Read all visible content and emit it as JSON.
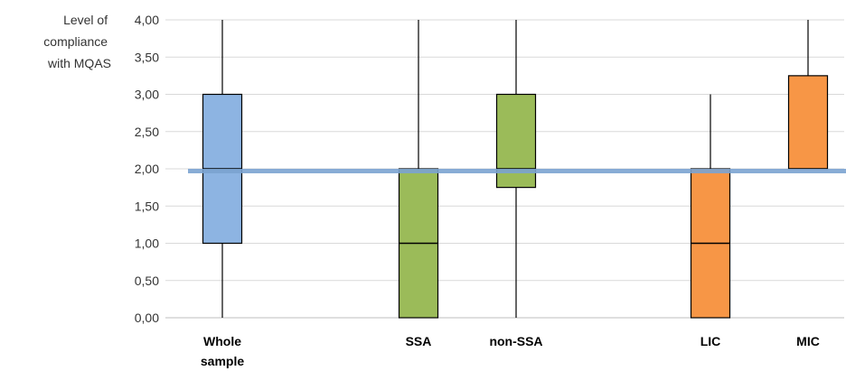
{
  "chart_data": {
    "type": "boxplot",
    "ylabel_lines": [
      "Level of",
      "compliance",
      "with MQAS"
    ],
    "ylim": [
      0,
      4
    ],
    "yticks": [
      "0,00",
      "0,50",
      "1,00",
      "1,50",
      "2,00",
      "2,50",
      "3,00",
      "3,50",
      "4,00"
    ],
    "grid": true,
    "reference_line": {
      "y": 1.97,
      "color": "#7BA3D0"
    },
    "categories": [
      {
        "label_lines": [
          "Whole",
          "sample"
        ],
        "min": 0,
        "q1": 1.0,
        "median": 2.0,
        "q3": 3.0,
        "max": 4.0,
        "color": "#8DB4E2"
      },
      {
        "label_lines": [
          "SSA"
        ],
        "min": 0,
        "q1": 0.0,
        "median": 1.0,
        "q3": 2.0,
        "max": 4.0,
        "color": "#9BBB59"
      },
      {
        "label_lines": [
          "non-SSA"
        ],
        "min": 0,
        "q1": 1.75,
        "median": 2.0,
        "q3": 3.0,
        "max": 4.0,
        "color": "#9BBB59"
      },
      {
        "label_lines": [
          "LIC"
        ],
        "min": 0,
        "q1": 0.0,
        "median": 1.0,
        "q3": 2.0,
        "max": 3.0,
        "color": "#F79646"
      },
      {
        "label_lines": [
          "MIC"
        ],
        "min": 2.0,
        "q1": 2.0,
        "median": 2.0,
        "q3": 3.25,
        "max": 4.0,
        "color": "#F79646"
      }
    ]
  }
}
